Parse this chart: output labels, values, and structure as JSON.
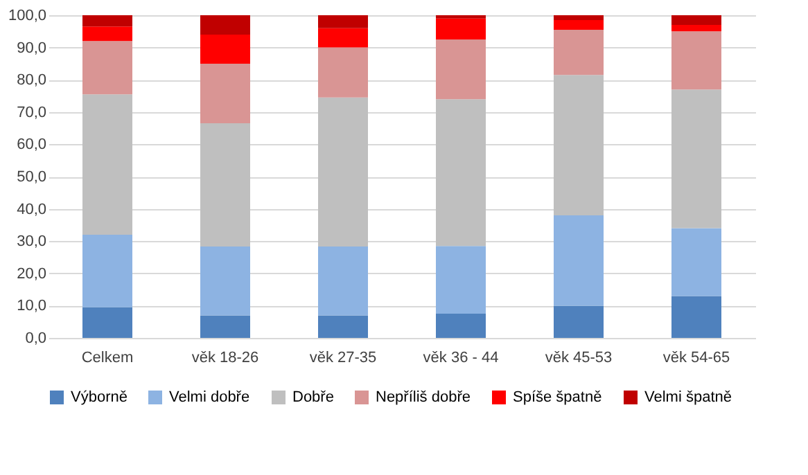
{
  "chart_data": {
    "type": "bar",
    "stacked": true,
    "categories": [
      "Celkem",
      "věk 18-26",
      "věk 27-35",
      "věk 36 - 44",
      "věk 45-53",
      "věk 54-65"
    ],
    "series": [
      {
        "name": "Výborně",
        "color": "#4f81bd",
        "values": [
          9.5,
          7,
          7,
          7.5,
          10,
          13
        ]
      },
      {
        "name": "Velmi dobře",
        "color": "#8db3e2",
        "values": [
          22.5,
          21.3,
          21.3,
          21,
          28,
          21
        ]
      },
      {
        "name": "Dobře",
        "color": "#bfbfbf",
        "values": [
          43.5,
          38.2,
          46.2,
          45.5,
          43.5,
          43
        ]
      },
      {
        "name": "Nepříliš dobře",
        "color": "#d99594",
        "values": [
          16.5,
          18.5,
          15.5,
          18.5,
          14,
          18
        ]
      },
      {
        "name": "Spíše špatně",
        "color": "#ff0000",
        "values": [
          4.5,
          9,
          6,
          6.5,
          3,
          2
        ]
      },
      {
        "name": "Velmi špatně",
        "color": "#c00000",
        "values": [
          3.5,
          6,
          4,
          1,
          1.5,
          3
        ]
      }
    ],
    "ylim": [
      0,
      100
    ],
    "yticks": [
      {
        "value": 0,
        "label": "0,0"
      },
      {
        "value": 10,
        "label": "10,0"
      },
      {
        "value": 20,
        "label": "20,0"
      },
      {
        "value": 30,
        "label": "30,0"
      },
      {
        "value": 40,
        "label": "40,0"
      },
      {
        "value": 50,
        "label": "50,0"
      },
      {
        "value": 60,
        "label": "60,0"
      },
      {
        "value": 70,
        "label": "70,0"
      },
      {
        "value": 80,
        "label": "80,0"
      },
      {
        "value": 90,
        "label": "90,0"
      },
      {
        "value": 100,
        "label": "100,0"
      }
    ],
    "grid": "y",
    "legend": "bottom"
  }
}
